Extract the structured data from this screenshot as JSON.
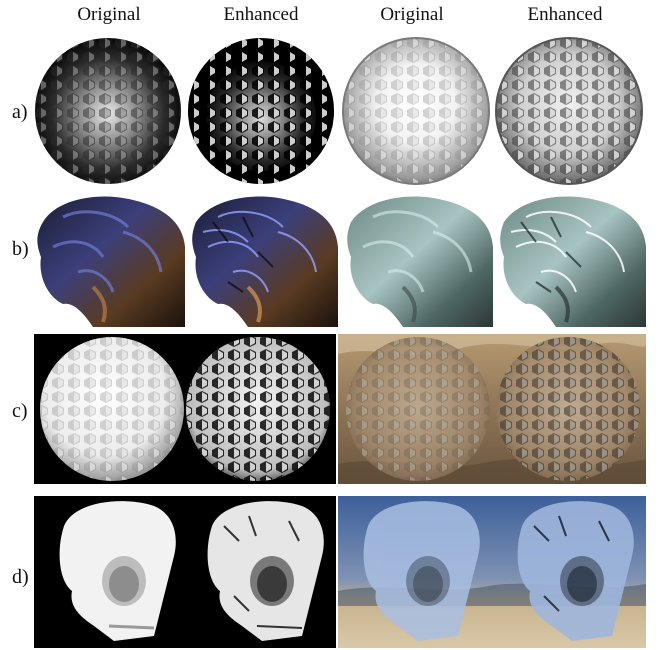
{
  "headers": [
    "Original",
    "Enhanced",
    "Original",
    "Enhanced"
  ],
  "rows": [
    {
      "label": "a)",
      "subject": "golf ball sphere"
    },
    {
      "label": "b)",
      "subject": "lion sculpture"
    },
    {
      "label": "c)",
      "subject": "golf ball sphere"
    },
    {
      "label": "d)",
      "subject": "skull"
    }
  ]
}
